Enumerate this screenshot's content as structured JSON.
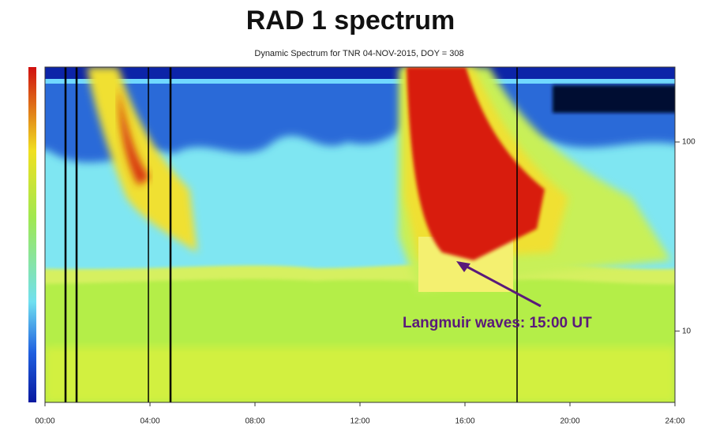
{
  "chart_data": {
    "type": "spectrogram",
    "title": "RAD 1 spectrum",
    "subtitle": "Dynamic Spectrum for TNR 04-NOV-2015, DOY = 308",
    "xlim": [
      0,
      24
    ],
    "xticks": [
      {
        "value": 0,
        "label": "00:00"
      },
      {
        "value": 4,
        "label": "04:00"
      },
      {
        "value": 8,
        "label": "08:00"
      },
      {
        "value": 12,
        "label": "12:00"
      },
      {
        "value": 16,
        "label": "16:00"
      },
      {
        "value": 20,
        "label": "20:00"
      },
      {
        "value": 24,
        "label": "24:00"
      }
    ],
    "y2lim": [
      4.2,
      249
    ],
    "y2log": true,
    "y2ticks": [
      10,
      100
    ],
    "annotation": "Langmuir waves: 15:00 UT"
  }
}
